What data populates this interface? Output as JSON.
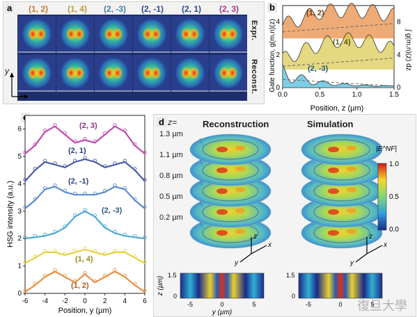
{
  "panel_a": {
    "label": "a",
    "columns": [
      "(1, 2)",
      "(1, 4)",
      "(2, -3)",
      "(2, -1)",
      "(2, 1)",
      "(2, 3)"
    ],
    "column_colors": [
      "#c87a30",
      "#b5a23a",
      "#3f7fa8",
      "#2b4a8c",
      "#2b4a8c",
      "#a03a8c"
    ],
    "rows": [
      "Expr.",
      "Reconst."
    ],
    "axis_y": "y",
    "axis_x": "x"
  },
  "panel_b": {
    "label": "b",
    "ylabel_left": "Gate function, g(m,n)(z)",
    "ylabel_right": "∫ g(m,n)(z) dz",
    "xlabel": "Position, z (µm)",
    "xticks": [
      "0.0",
      "0.5",
      "1.0",
      "1.5"
    ],
    "yticks_left": [
      "0",
      "2",
      "4"
    ],
    "yticks_right": [
      "0",
      "4",
      "8"
    ],
    "curve_labels": [
      "(1, 2)",
      "(1, 4)",
      "(2, -3)"
    ],
    "curve_label_colors": [
      "#6b3a10",
      "#5a5a10",
      "#1f5a80"
    ]
  },
  "panel_c": {
    "label": "c",
    "ylabel": "HSG intensity (a.u.)",
    "xlabel": "Position, y (µm)",
    "xticks": [
      "-6",
      "-4",
      "-2",
      "0",
      "2",
      "4",
      "6"
    ],
    "yticks": [
      "0",
      "1",
      "2",
      "3",
      "4",
      "5",
      "6"
    ],
    "curve_labels": [
      "(2, 3)",
      "(2, 1)",
      "(2, -1)",
      "(2, -3)",
      "(1, 4)",
      "(1, 2)"
    ],
    "curve_label_colors": [
      "#8a3080",
      "#2b3f7a",
      "#2b3f7a",
      "#2b5a7a",
      "#9a8a20",
      "#b06020"
    ]
  },
  "panel_d": {
    "label": "d",
    "z_prefix": "z=",
    "z_levels": [
      "1.3 µm",
      "1.1 µm",
      "0.8 µm",
      "0.5 µm",
      "0.2 µm"
    ],
    "title_left": "Reconstruction",
    "title_right": "Simulation",
    "colorbar_label": "|E^NF|",
    "colorbar_ticks": [
      "1.0",
      "0.5",
      "0.0"
    ],
    "bottom_ylabel": "z (µm)",
    "bottom_xlabel": "y (µm)",
    "bottom_xticks": [
      "-5",
      "0",
      "5"
    ],
    "bottom_yticks": [
      "1.5",
      "0"
    ],
    "axis_labels": [
      "z",
      "x",
      "y"
    ]
  },
  "watermark": "復旦大學",
  "chart_data": [
    {
      "type": "line",
      "title": "",
      "xlabel": "Position, z (µm)",
      "ylabel": "Gate function",
      "xlim": [
        0,
        1.5
      ],
      "ylim": [
        0,
        5
      ],
      "series": [
        {
          "name": "(1, 2)",
          "x": [
            0,
            0.25,
            0.5,
            0.75,
            1.0,
            1.25,
            1.5
          ],
          "values": [
            3.8,
            4.2,
            4.6,
            4.7,
            4.7,
            4.6,
            4.4
          ]
        },
        {
          "name": "(1, 4)",
          "x": [
            0,
            0.25,
            0.5,
            0.75,
            1.0,
            1.25,
            1.5
          ],
          "values": [
            1.7,
            2.2,
            2.6,
            2.9,
            2.9,
            2.7,
            2.3
          ]
        },
        {
          "name": "(2, -3)",
          "x": [
            0,
            0.25,
            0.5,
            0.75,
            1.0,
            1.25,
            1.5
          ],
          "values": [
            0.9,
            0.5,
            0.3,
            0.2,
            0.15,
            0.1,
            0.1
          ]
        }
      ]
    },
    {
      "type": "line",
      "title": "",
      "xlabel": "Position, y (µm)",
      "ylabel": "HSG intensity (a.u.)",
      "xlim": [
        -6,
        6
      ],
      "ylim": [
        0,
        6.5
      ],
      "series": [
        {
          "name": "(2, 3)",
          "offset": 5,
          "x": [
            -6,
            -5,
            -4,
            -3,
            -2,
            -1,
            0,
            1,
            2,
            3,
            4,
            5,
            6
          ],
          "values": [
            0.1,
            0.4,
            0.9,
            1.1,
            0.8,
            0.5,
            0.6,
            0.5,
            0.8,
            1.1,
            0.9,
            0.4,
            0.1
          ]
        },
        {
          "name": "(2, 1)",
          "offset": 4,
          "x": [
            -6,
            -5,
            -4,
            -3,
            -2,
            -1,
            0,
            1,
            2,
            3,
            4,
            5,
            6
          ],
          "values": [
            0.1,
            0.5,
            0.8,
            0.7,
            0.6,
            0.8,
            0.9,
            0.8,
            0.6,
            0.7,
            0.8,
            0.5,
            0.1
          ]
        },
        {
          "name": "(2, -1)",
          "offset": 3,
          "x": [
            -6,
            -5,
            -4,
            -3,
            -2,
            -1,
            0,
            1,
            2,
            3,
            4,
            5,
            6
          ],
          "values": [
            0.1,
            0.4,
            0.8,
            0.9,
            0.7,
            0.6,
            0.6,
            0.6,
            0.7,
            0.9,
            0.8,
            0.4,
            0.1
          ]
        },
        {
          "name": "(2, -3)",
          "offset": 2,
          "x": [
            -6,
            -5,
            -4,
            -3,
            -2,
            -1,
            0,
            1,
            2,
            3,
            4,
            5,
            6
          ],
          "values": [
            0.0,
            0.05,
            0.1,
            0.2,
            0.4,
            0.8,
            1.0,
            0.8,
            0.4,
            0.2,
            0.1,
            0.05,
            0.0
          ]
        },
        {
          "name": "(1, 4)",
          "offset": 1,
          "x": [
            -6,
            -5,
            -4,
            -3,
            -2,
            -1,
            0,
            1,
            2,
            3,
            4,
            5,
            6
          ],
          "values": [
            0.1,
            0.3,
            0.5,
            0.5,
            0.4,
            0.5,
            0.6,
            0.5,
            0.4,
            0.5,
            0.5,
            0.3,
            0.1
          ]
        },
        {
          "name": "(1, 2)",
          "offset": 0,
          "x": [
            -6,
            -5,
            -4,
            -3,
            -2,
            -1,
            0,
            1,
            2,
            3,
            4,
            5,
            6
          ],
          "values": [
            0.05,
            0.3,
            0.6,
            0.8,
            0.6,
            0.4,
            0.7,
            0.4,
            0.6,
            0.8,
            0.6,
            0.3,
            0.05
          ]
        }
      ]
    }
  ]
}
